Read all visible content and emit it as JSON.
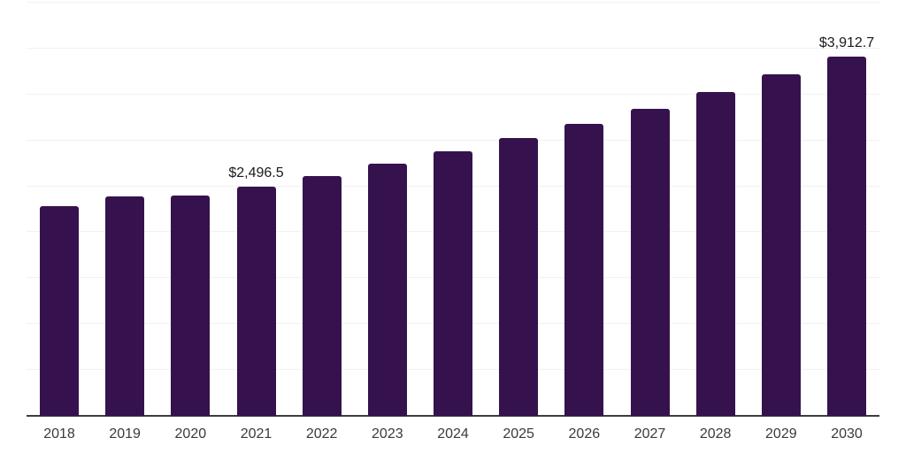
{
  "chart_data": {
    "type": "bar",
    "title": "",
    "xlabel": "",
    "ylabel": "",
    "categories": [
      "2018",
      "2019",
      "2020",
      "2021",
      "2022",
      "2023",
      "2024",
      "2025",
      "2026",
      "2027",
      "2028",
      "2029",
      "2030"
    ],
    "values": [
      2285,
      2390,
      2397,
      2496.5,
      2610,
      2746,
      2877,
      3030,
      3178,
      3348,
      3531,
      3723,
      3912.7
    ],
    "data_labels": [
      {
        "index": 3,
        "text": "$2,496.5"
      },
      {
        "index": 12,
        "text": "$3,912.7"
      }
    ],
    "ylim": [
      0,
      4500
    ],
    "gridline_interval": 500,
    "grid": true,
    "legend": false,
    "y_tick_labels_shown": false,
    "colors": {
      "bar": "#35124E",
      "gridline": "#F1F1F1",
      "axis_line": "#3C3C3C",
      "tick_label": "#3A3A3A",
      "data_label": "#1A1A1A",
      "background": "#FFFFFF"
    }
  }
}
